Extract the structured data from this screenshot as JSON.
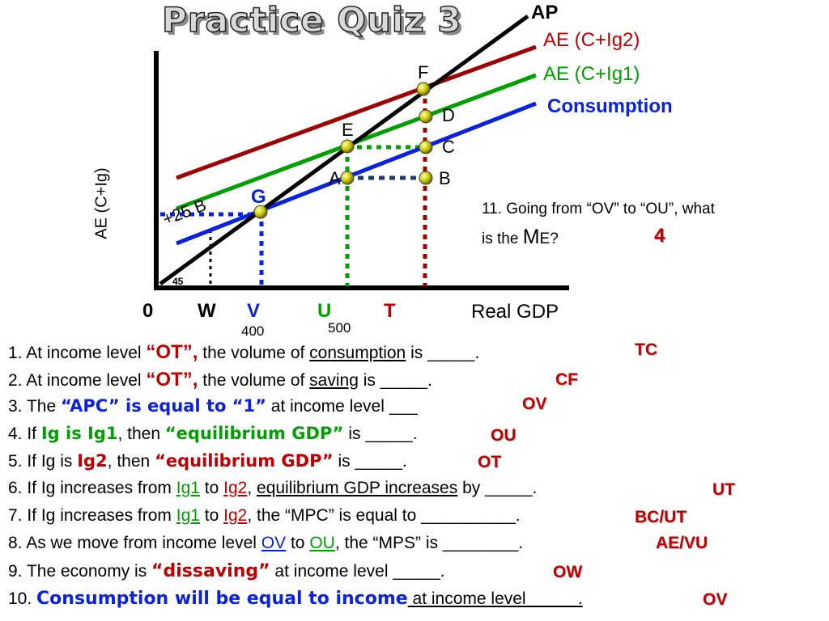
{
  "title": "Practice Quiz 3",
  "axes": {
    "y_label": "AE (C+Ig)",
    "x_label": "Real GDP",
    "origin": "0",
    "angle": "45",
    "x_ticks": [
      "W",
      "V",
      "U",
      "T"
    ],
    "x_values": [
      "400",
      "500"
    ]
  },
  "lines": {
    "ap": "AP",
    "ae2": "AE (C+Ig2)",
    "ae1": "AE (C+Ig1)",
    "consumption": "Consumption"
  },
  "points": [
    "F",
    "E",
    "D",
    "C",
    "A",
    "B",
    "G"
  ],
  "shift_label": "+25 B",
  "colors": {
    "red": "#a00000",
    "green": "#00a000",
    "blue": "#0a22e0",
    "black": "#000000",
    "answer": "#c00000"
  },
  "question11": {
    "line1": "11. Going from “OV” to “OU”, what",
    "line2_pre": "is the ",
    "line2_m": "M",
    "line2_post": "E?",
    "answer": "4"
  },
  "questions": [
    {
      "n": "1. At income level ",
      "h1": "“OT”,",
      "t1": " the volume of ",
      "h2": "consumption",
      "t2": " is _____.",
      "answer": "TC"
    },
    {
      "n": "2. At income level ",
      "h1": "“OT”,",
      "t1": " the volume of ",
      "h2": "saving",
      "t2": " is _____.",
      "answer": "CF"
    },
    {
      "n": "3. The ",
      "h1": "“APC” is equal to “1”",
      "t1": " at income level ___",
      "answer": "OV"
    },
    {
      "n": "4. If ",
      "h1": "Ig is Ig1",
      "t1": ", then ",
      "h2": "“equilibrium GDP”",
      "t2": " is _____.",
      "answer": "OU"
    },
    {
      "n": "5. If Ig is ",
      "h1": "Ig2",
      "t1": ", then ",
      "h2": "“equilibrium GDP”",
      "t2": " is _____.",
      "answer": "OT"
    },
    {
      "n": "6. If Ig increases from ",
      "h1": "Ig1",
      "t1": " to ",
      "h2": "Ig2",
      "t2": ", ",
      "h3": "equilibrium GDP increases",
      "t3": " by _____.",
      "answer": "UT"
    },
    {
      "n": "7. If Ig increases from ",
      "h1": "Ig1",
      "t1": " to ",
      "h2": "Ig2",
      "t2": ", the “MPC” is equal to __________.",
      "answer": "BC/UT"
    },
    {
      "n": "8. As we move from income level ",
      "h1": "OV",
      "t1": " to ",
      "h2": "OU",
      "t2": ", the “MPS” is ________.",
      "answer": "AE/VU"
    },
    {
      "n": "9. The economy is ",
      "h1": "“dissaving”",
      "t1": " at income level _____.",
      "answer": "OW"
    },
    {
      "n": "10. ",
      "h1": "Consumption will be equal to income",
      "t1": " at income level _____.",
      "answer": "OV"
    }
  ]
}
